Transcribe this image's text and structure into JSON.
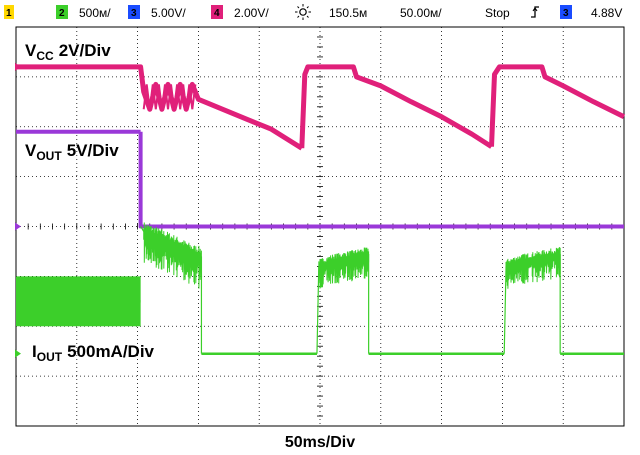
{
  "status_bar": {
    "ch1_label": "1",
    "ch2_badge": "2",
    "ch2_scale": "500ᴍ/",
    "ch3_badge": "3",
    "ch3_scale": "5.00V/",
    "ch4_badge": "4",
    "ch4_scale": "2.00V/",
    "trigger_icon": "sun-trigger-icon",
    "time_offset": "150.5ᴍ",
    "time_scale": "50.00ᴍ/",
    "run_state": "Stop",
    "edge_icon": "rising-edge-icon",
    "trigger_channel_badge": "3",
    "trigger_level": "4.88V"
  },
  "labels": {
    "vcc_main": "V",
    "vcc_sub": "CC",
    "vcc_scale": "2V/Div",
    "vout_main": "V",
    "vout_sub": "OUT",
    "vout_scale": "5V/Div",
    "iout_main": "I",
    "iout_sub": "OUT",
    "iout_scale": "500mA/Div",
    "timebase": "50ms/Div"
  },
  "colors": {
    "vcc": "#e0207a",
    "vout": "#9a38d8",
    "iout": "#3ccf2a",
    "grid": "#000000",
    "ch1_badge": "#ffd800",
    "ch2_badge": "#3ccf2a",
    "ch3_badge": "#1a4cff",
    "ch4_badge": "#e0207a"
  },
  "chart_data": {
    "type": "line",
    "xlabel": "50ms/Div",
    "x_unit": "divisions",
    "xlim": [
      0,
      10
    ],
    "ylim": [
      -4,
      4
    ],
    "grid": true,
    "series": [
      {
        "name": "VCC",
        "scale": "2V/Div",
        "segments": [
          {
            "x": [
              0.0,
              2.05,
              2.05,
              2.1,
              2.2,
              2.3,
              2.4,
              2.5,
              2.6,
              2.7,
              2.8,
              2.9,
              3.0,
              3.1,
              3.4,
              3.8,
              4.2,
              4.7,
              4.7
            ],
            "y": [
              3.2,
              3.2,
              3.2,
              2.7,
              2.35,
              2.85,
              2.35,
              2.85,
              2.35,
              2.85,
              2.35,
              2.85,
              2.55,
              2.5,
              2.35,
              2.15,
              1.95,
              1.57,
              1.57
            ]
          },
          {
            "x": [
              4.7,
              4.75,
              4.8,
              5.55,
              5.6,
              6.0,
              6.5,
              7.0,
              7.5,
              7.82
            ],
            "y": [
              1.57,
              3.05,
              3.2,
              3.2,
              3.0,
              2.82,
              2.5,
              2.2,
              1.85,
              1.6
            ]
          },
          {
            "x": [
              7.82,
              7.87,
              7.95,
              8.65,
              8.7,
              9.0,
              9.5,
              10.0
            ],
            "y": [
              1.6,
              3.05,
              3.2,
              3.2,
              3.0,
              2.82,
              2.5,
              2.2
            ]
          }
        ]
      },
      {
        "name": "VOUT",
        "scale": "5V/Div",
        "segments": [
          {
            "x": [
              0.0,
              2.05
            ],
            "y": [
              1.9,
              1.9
            ]
          },
          {
            "x": [
              2.05,
              2.05,
              10.0
            ],
            "y": [
              1.9,
              0.0,
              0.0
            ]
          }
        ]
      },
      {
        "name": "IOUT",
        "scale": "500mA/Div",
        "segments": [
          {
            "x": [
              0.0,
              2.05
            ],
            "y": [
              -1.5,
              -1.5
            ],
            "band": [
              -2.0,
              -1.0
            ]
          },
          {
            "x": [
              2.05,
              2.1,
              2.5,
              2.9,
              3.05,
              3.05
            ],
            "y": [
              0.0,
              -0.1,
              -0.3,
              -0.55,
              -0.6,
              -2.55
            ],
            "band_amplitude": 0.55
          },
          {
            "x": [
              3.05,
              4.95
            ],
            "y": [
              -2.55,
              -2.55
            ]
          },
          {
            "x": [
              4.95,
              4.98,
              5.2,
              5.8,
              5.8
            ],
            "y": [
              -2.55,
              -0.8,
              -0.7,
              -0.55,
              -2.55
            ],
            "band_amplitude": 0.4
          },
          {
            "x": [
              5.8,
              8.03
            ],
            "y": [
              -2.55,
              -2.55
            ]
          },
          {
            "x": [
              8.03,
              8.06,
              8.3,
              8.95,
              8.95
            ],
            "y": [
              -2.55,
              -0.8,
              -0.7,
              -0.55,
              -2.55
            ],
            "band_amplitude": 0.4
          },
          {
            "x": [
              8.95,
              10.0
            ],
            "y": [
              -2.55,
              -2.55
            ]
          }
        ]
      }
    ]
  }
}
